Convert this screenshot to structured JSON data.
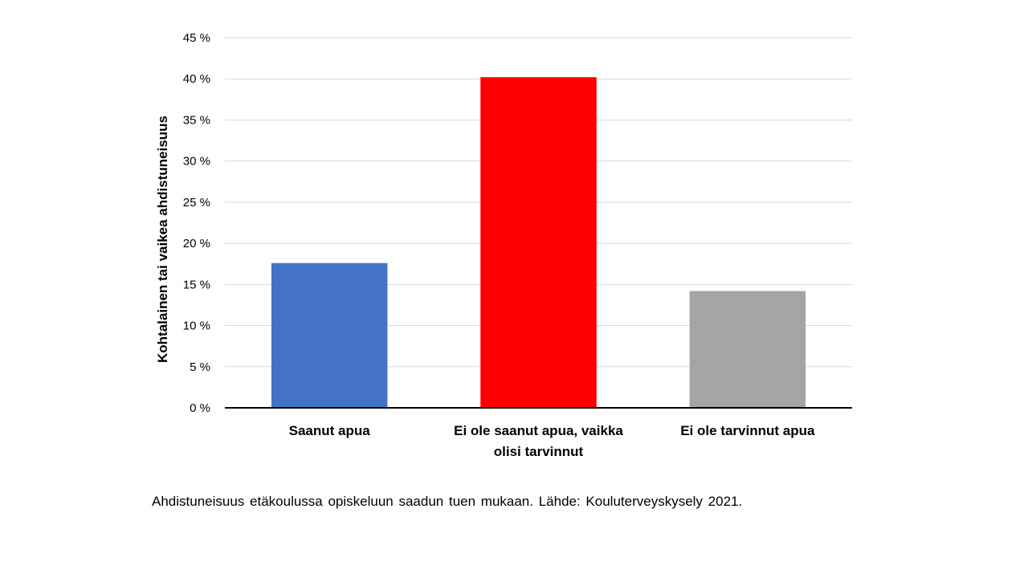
{
  "caption": "Ahdistuneisuus etäkoulussa opiskeluun saadun tuen mukaan. Lähde: Kouluterveyskysely 2021.",
  "chart_data": {
    "type": "bar",
    "categories": [
      [
        "Saanut apua"
      ],
      [
        "Ei ole saanut apua, vaikka",
        "olisi tarvinnut"
      ],
      [
        "Ei ole tarvinnut apua"
      ]
    ],
    "values": [
      17.6,
      40.2,
      14.2
    ],
    "colors": [
      "#4472C4",
      "#FF0000",
      "#A5A5A5"
    ],
    "ylabel": "Kohtalainen  tai vaikea ahdistuneisuus",
    "ylim": [
      0,
      45
    ],
    "yticks": [
      0,
      5,
      10,
      15,
      20,
      25,
      30,
      35,
      40,
      45
    ],
    "tick_suffix": " %",
    "grid": true,
    "grid_color": "#D9D9D9",
    "axis_color": "#000000"
  }
}
